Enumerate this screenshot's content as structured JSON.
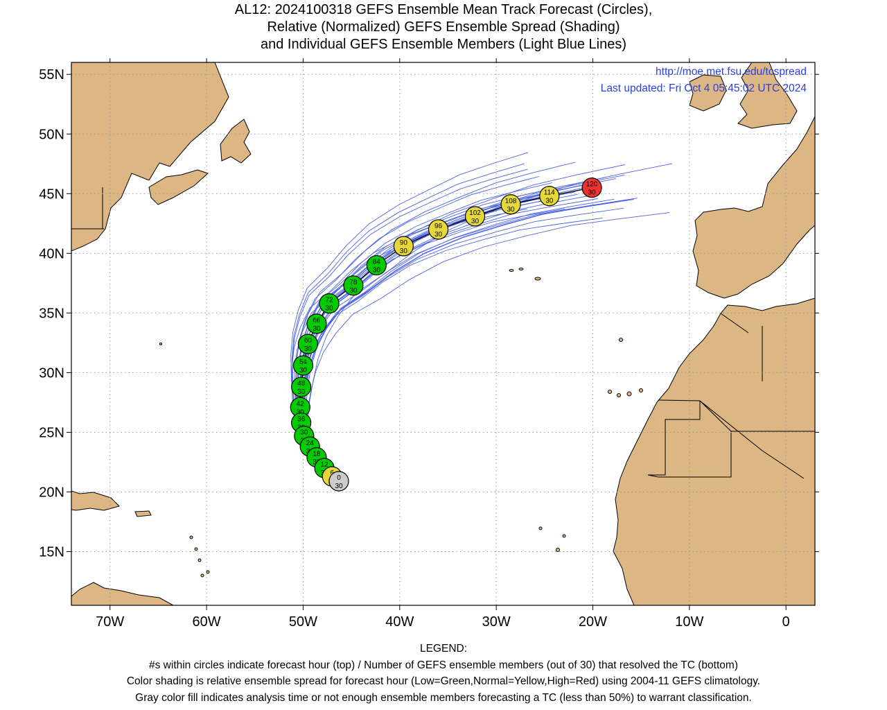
{
  "title": {
    "line1": "AL12: 2024100318 GEFS Ensemble Mean Track Forecast (Circles),",
    "line2": "Relative (Normalized) GEFS Ensemble Spread (Shading)",
    "line3": "and Individual GEFS Ensemble Members (Light Blue Lines)"
  },
  "info": {
    "url": "http://moe.met.fsu.edu/tcspread",
    "updated": "Last updated: Fri Oct 4 05:45:02 UTC 2024"
  },
  "axes": {
    "lon_labels": [
      "70W",
      "60W",
      "50W",
      "40W",
      "30W",
      "20W",
      "10W",
      "0"
    ],
    "lon_values": [
      -70,
      -60,
      -50,
      -40,
      -30,
      -20,
      -10,
      0
    ],
    "lat_labels": [
      "55N",
      "50N",
      "45N",
      "40N",
      "35N",
      "30N",
      "25N",
      "20N",
      "15N"
    ],
    "lat_values": [
      55,
      50,
      45,
      40,
      35,
      30,
      25,
      20,
      15
    ],
    "lon_range": [
      -74,
      3
    ],
    "lat_range": [
      10.5,
      56
    ],
    "grid": "dotted"
  },
  "colors": {
    "land": "#dcb683",
    "ocean": "#ffffff",
    "members": "#4a62e6",
    "mean_track": "#000000",
    "spread_low": "#00cc00",
    "spread_normal": "#e6d83a",
    "spread_high": "#ee3333",
    "analysis_gray": "#cccccc",
    "url_text": "#2a3fe0"
  },
  "track": [
    {
      "hour": "0",
      "members": "30",
      "lon": -46.3,
      "lat": 20.9,
      "spread": "gray"
    },
    {
      "hour": "6",
      "members": "30",
      "lon": -47.0,
      "lat": 21.3,
      "spread": "normal"
    },
    {
      "hour": "12",
      "members": "30",
      "lon": -47.8,
      "lat": 22.0,
      "spread": "low"
    },
    {
      "hour": "18",
      "members": "30",
      "lon": -48.6,
      "lat": 22.9,
      "spread": "low"
    },
    {
      "hour": "24",
      "members": "30",
      "lon": -49.3,
      "lat": 23.8,
      "spread": "low"
    },
    {
      "hour": "30",
      "members": "30",
      "lon": -49.9,
      "lat": 24.7,
      "spread": "low"
    },
    {
      "hour": "36",
      "members": "30",
      "lon": -50.2,
      "lat": 25.8,
      "spread": "low"
    },
    {
      "hour": "42",
      "members": "30",
      "lon": -50.3,
      "lat": 27.1,
      "spread": "low"
    },
    {
      "hour": "48",
      "members": "30",
      "lon": -50.2,
      "lat": 28.8,
      "spread": "low"
    },
    {
      "hour": "54",
      "members": "30",
      "lon": -50.0,
      "lat": 30.6,
      "spread": "low"
    },
    {
      "hour": "60",
      "members": "30",
      "lon": -49.5,
      "lat": 32.4,
      "spread": "low"
    },
    {
      "hour": "66",
      "members": "30",
      "lon": -48.6,
      "lat": 34.1,
      "spread": "low"
    },
    {
      "hour": "72",
      "members": "30",
      "lon": -47.3,
      "lat": 35.8,
      "spread": "low"
    },
    {
      "hour": "78",
      "members": "30",
      "lon": -44.8,
      "lat": 37.3,
      "spread": "low"
    },
    {
      "hour": "84",
      "members": "30",
      "lon": -42.4,
      "lat": 39.0,
      "spread": "low"
    },
    {
      "hour": "90",
      "members": "30",
      "lon": -39.6,
      "lat": 40.6,
      "spread": "normal"
    },
    {
      "hour": "96",
      "members": "30",
      "lon": -36.0,
      "lat": 42.0,
      "spread": "normal"
    },
    {
      "hour": "102",
      "members": "30",
      "lon": -32.2,
      "lat": 43.1,
      "spread": "normal"
    },
    {
      "hour": "108",
      "members": "30",
      "lon": -28.5,
      "lat": 44.1,
      "spread": "normal"
    },
    {
      "hour": "114",
      "members": "30",
      "lon": -24.5,
      "lat": 44.8,
      "spread": "normal"
    },
    {
      "hour": "120",
      "members": "30",
      "lon": -20.1,
      "lat": 45.5,
      "spread": "high"
    }
  ],
  "legend": {
    "heading": "LEGEND:",
    "line1": "#s within circles indicate forecast hour (top) / Number of GEFS ensemble members (out of 30) that resolved the TC (bottom)",
    "line2": "Color shading is relative ensemble spread for forecast hour (Low=Green,Normal=Yellow,High=Red) using 2004-11 GEFS climatology.",
    "line3": "Gray color fill indicates analysis time or not enough ensemble members forecasting a TC (less than 50%) to warrant classification."
  }
}
